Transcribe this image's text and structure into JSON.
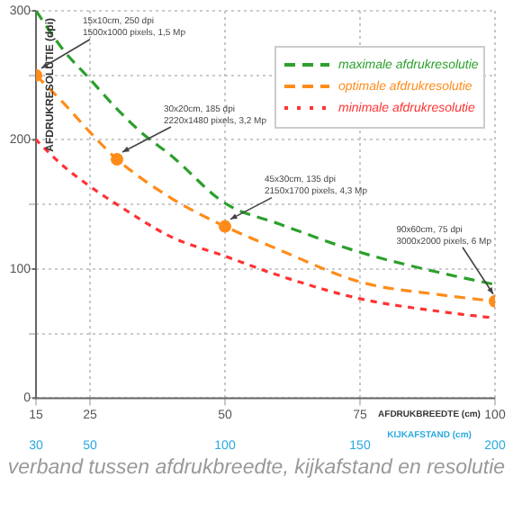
{
  "chart_data": {
    "type": "line",
    "title": "verband tussen afdrukbreedte, kijkafstand en resolutie",
    "xlabel": "AFDRUKBREEDTE (cm)",
    "x2label": "KIJKAFSTAND (cm)",
    "ylabel": "AFDRUKRESOLUTIE (dpi)",
    "xlim": [
      15,
      100
    ],
    "xticks": [
      15,
      25,
      50,
      75,
      100
    ],
    "x2lim": [
      30,
      200
    ],
    "x2ticks": [
      30,
      50,
      100,
      150,
      200
    ],
    "ylim": [
      0,
      300
    ],
    "yticks": [
      0,
      {
        "value": 50,
        "label": null
      },
      100,
      {
        "value": 150,
        "label": null
      },
      200,
      {
        "value": 250,
        "label": null
      },
      300
    ],
    "grid": true,
    "legend": "top right",
    "marker": "none",
    "series": [
      {
        "name": "maximale afdrukresolutie",
        "color": "#2ca02c",
        "line_style": "dashed",
        "x": [
          15,
          20,
          25,
          30,
          35,
          40,
          50,
          60,
          75,
          90,
          100
        ],
        "values": [
          300,
          270,
          247,
          224,
          204,
          188,
          151,
          135,
          113,
          97,
          88
        ]
      },
      {
        "name": "optimale afdrukresolutie",
        "color": "#ff8c1a",
        "line_style": "dashed",
        "x": [
          15,
          20,
          25,
          30,
          40,
          50,
          60,
          75,
          90,
          100
        ],
        "values": [
          250,
          229,
          206,
          185,
          155,
          133,
          115,
          90,
          80,
          75
        ]
      },
      {
        "name": "minimale afdrukresolutie",
        "color": "#ff3333",
        "line_style": "dotted",
        "x": [
          15,
          20,
          25,
          30,
          40,
          50,
          60,
          75,
          90,
          100
        ],
        "values": [
          200,
          180,
          164,
          150,
          125,
          110,
          95,
          77,
          67,
          62
        ]
      },
      {
        "type": "scatter",
        "marker": "circle",
        "color": "#ff8c1a",
        "x": [
          15,
          30,
          50,
          100
        ],
        "values": [
          250,
          185,
          133,
          75
        ]
      }
    ],
    "annotations": [
      {
        "text": "15x10cm, 250 dpi\n1500x1000 pixels, 1,5 Mp",
        "x": 15,
        "y": 250
      },
      {
        "text": "30x20cm, 185 dpi\n2220x1480 pixels, 3,2 Mp",
        "x": 30,
        "y": 185
      },
      {
        "text": "45x30cm, 135 dpi\n2150x1700 pixels, 4,3 Mp",
        "x": 50,
        "y": 133
      },
      {
        "text": "90x60cm, 75 dpi\n3000x2000 pixels, 6 Mp",
        "x": 100,
        "y": 75
      }
    ]
  }
}
